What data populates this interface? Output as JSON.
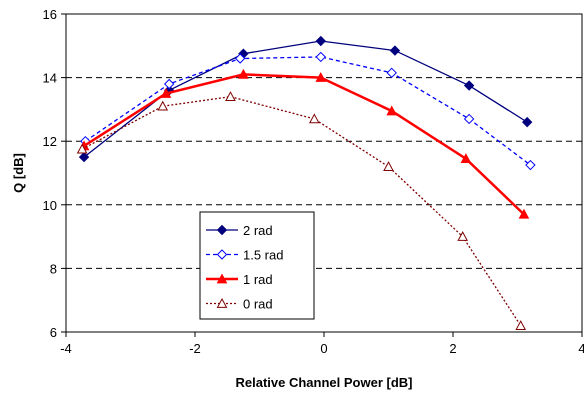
{
  "chart_data": {
    "type": "line",
    "xlabel": "Relative Channel Power [dB]",
    "ylabel": "Q [dB]",
    "xlim": [
      -4,
      4
    ],
    "ylim": [
      6,
      16
    ],
    "x_ticks": [
      "-4",
      "-2",
      "0",
      "2",
      "4"
    ],
    "y_ticks": [
      "6",
      "8",
      "10",
      "12",
      "14",
      "16"
    ],
    "grid": "horizontal dashed",
    "legend_position": "lower-left inside plot",
    "series": [
      {
        "name": "2 rad",
        "color": "#00007f",
        "line": "solid",
        "marker": "filled-diamond",
        "points": [
          [
            -3.72,
            11.5
          ],
          [
            -2.4,
            13.6
          ],
          [
            -1.25,
            14.75
          ],
          [
            -0.05,
            15.15
          ],
          [
            1.1,
            14.85
          ],
          [
            2.25,
            13.75
          ],
          [
            3.15,
            12.6
          ]
        ]
      },
      {
        "name": "1.5 rad",
        "color": "#0000ff",
        "line": "dashed",
        "marker": "open-diamond",
        "points": [
          [
            -3.7,
            12.0
          ],
          [
            -2.4,
            13.8
          ],
          [
            -1.3,
            14.6
          ],
          [
            -0.05,
            14.65
          ],
          [
            1.05,
            14.15
          ],
          [
            2.25,
            12.7
          ],
          [
            3.2,
            11.25
          ]
        ]
      },
      {
        "name": "1 rad",
        "color": "#ff0000",
        "line": "solid-thick",
        "marker": "filled-triangle",
        "points": [
          [
            -3.72,
            11.85
          ],
          [
            -2.45,
            13.5
          ],
          [
            -1.25,
            14.1
          ],
          [
            -0.05,
            14.0
          ],
          [
            1.05,
            12.95
          ],
          [
            2.2,
            11.45
          ],
          [
            3.1,
            9.7
          ]
        ]
      },
      {
        "name": "0 rad",
        "color": "#7f0000",
        "line": "dotted",
        "marker": "open-triangle",
        "points": [
          [
            -3.75,
            11.75
          ],
          [
            -2.5,
            13.1
          ],
          [
            -1.45,
            13.4
          ],
          [
            -0.15,
            12.7
          ],
          [
            1.0,
            11.2
          ],
          [
            2.15,
            9.0
          ],
          [
            3.05,
            6.2
          ]
        ]
      }
    ]
  }
}
